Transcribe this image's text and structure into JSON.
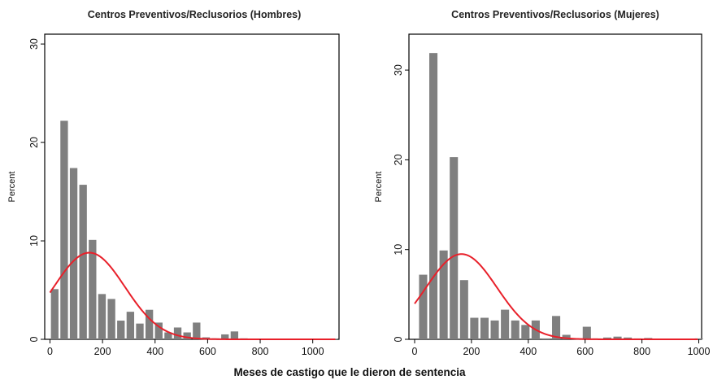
{
  "xlabel": "Meses de castigo que le dieron de sentencia",
  "chart_data": [
    {
      "type": "bar",
      "title": "Centros Preventivos/Reclusorios (Hombres)",
      "ylabel": "Percent",
      "xlim": [
        -20,
        1100
      ],
      "ylim": [
        0,
        31
      ],
      "xticks": [
        "0",
        "200",
        "400",
        "600",
        "800",
        "1000"
      ],
      "yticks": [
        "0",
        "10",
        "20",
        "30"
      ],
      "bin_width": 36,
      "bins": [
        {
          "x": 18,
          "y": 5.1
        },
        {
          "x": 54,
          "y": 22.2
        },
        {
          "x": 90,
          "y": 17.4
        },
        {
          "x": 126,
          "y": 15.7
        },
        {
          "x": 162,
          "y": 10.1
        },
        {
          "x": 198,
          "y": 4.6
        },
        {
          "x": 234,
          "y": 4.1
        },
        {
          "x": 270,
          "y": 1.9
        },
        {
          "x": 306,
          "y": 2.8
        },
        {
          "x": 342,
          "y": 1.6
        },
        {
          "x": 378,
          "y": 3.0
        },
        {
          "x": 414,
          "y": 1.7
        },
        {
          "x": 450,
          "y": 0.7
        },
        {
          "x": 486,
          "y": 1.2
        },
        {
          "x": 522,
          "y": 0.7
        },
        {
          "x": 558,
          "y": 1.7
        },
        {
          "x": 594,
          "y": 0.2
        },
        {
          "x": 630,
          "y": 0.1
        },
        {
          "x": 666,
          "y": 0.5
        },
        {
          "x": 702,
          "y": 0.8
        },
        {
          "x": 738,
          "y": 0.1
        },
        {
          "x": 774,
          "y": 0.05
        },
        {
          "x": 1080,
          "y": 0.05
        }
      ],
      "normal_curve": {
        "mean": 150,
        "sd": 135,
        "peak": 8.8
      },
      "bar_color": "#7f7f7f",
      "curve_color": "#e8202a"
    },
    {
      "type": "bar",
      "title": "Centros Preventivos/Reclusorios (Mujeres)",
      "ylabel": "Percent",
      "xlim": [
        -20,
        1010
      ],
      "ylim": [
        0,
        34
      ],
      "xticks": [
        "0",
        "200",
        "400",
        "600",
        "800",
        "1000"
      ],
      "yticks": [
        "0",
        "10",
        "20",
        "30"
      ],
      "bin_width": 36,
      "bins": [
        {
          "x": 30,
          "y": 7.2
        },
        {
          "x": 66,
          "y": 31.9
        },
        {
          "x": 102,
          "y": 9.9
        },
        {
          "x": 138,
          "y": 20.3
        },
        {
          "x": 174,
          "y": 6.6
        },
        {
          "x": 210,
          "y": 2.4
        },
        {
          "x": 246,
          "y": 2.4
        },
        {
          "x": 282,
          "y": 2.1
        },
        {
          "x": 318,
          "y": 3.3
        },
        {
          "x": 354,
          "y": 2.1
        },
        {
          "x": 390,
          "y": 1.6
        },
        {
          "x": 426,
          "y": 2.1
        },
        {
          "x": 462,
          "y": 0.1
        },
        {
          "x": 498,
          "y": 2.6
        },
        {
          "x": 534,
          "y": 0.5
        },
        {
          "x": 570,
          "y": 0.1
        },
        {
          "x": 606,
          "y": 1.4
        },
        {
          "x": 642,
          "y": 0.1
        },
        {
          "x": 678,
          "y": 0.2
        },
        {
          "x": 714,
          "y": 0.3
        },
        {
          "x": 750,
          "y": 0.2
        },
        {
          "x": 786,
          "y": 0.1
        },
        {
          "x": 822,
          "y": 0.15
        },
        {
          "x": 1000,
          "y": 0.1
        }
      ],
      "normal_curve": {
        "mean": 165,
        "sd": 125,
        "peak": 9.5
      },
      "bar_color": "#7f7f7f",
      "curve_color": "#e8202a"
    }
  ]
}
